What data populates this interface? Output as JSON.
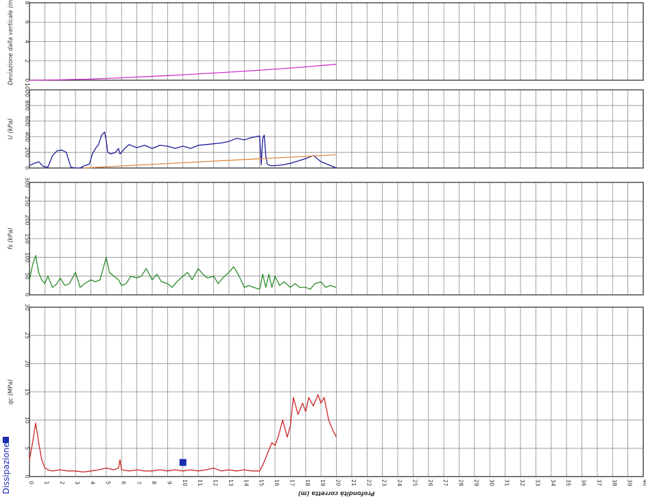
{
  "chart_data": [
    {
      "type": "line",
      "ylabel": "Deviazione dalla verticale (m)",
      "ylim": [
        0,
        8
      ],
      "yticks": [
        "0",
        "2",
        "4",
        "6",
        "8"
      ],
      "series": [
        {
          "color": "#cc33cc",
          "x": [
            0,
            2,
            4,
            6,
            8,
            10,
            12,
            14,
            16,
            18,
            20
          ],
          "y": [
            0,
            0.04,
            0.12,
            0.25,
            0.4,
            0.56,
            0.74,
            0.93,
            1.14,
            1.38,
            1.65
          ]
        }
      ]
    },
    {
      "type": "line",
      "ylabel": "U (kPa)",
      "ylim": [
        0,
        1000
      ],
      "yticks": [
        "0",
        "200",
        "400",
        "600",
        "800",
        "1000"
      ],
      "series": [
        {
          "color": "#1a1a99",
          "x": [
            0,
            0.3,
            0.6,
            0.9,
            1.2,
            1.5,
            1.8,
            2.1,
            2.4,
            2.7,
            3.0,
            3.3,
            3.6,
            3.9,
            4.1,
            4.3,
            4.5,
            4.7,
            4.9,
            5.0,
            5.1,
            5.3,
            5.6,
            5.8,
            5.9,
            6.0,
            6.2,
            6.5,
            7.0,
            7.5,
            8.0,
            8.5,
            9.0,
            9.5,
            10.0,
            10.5,
            11.0,
            11.5,
            12.0,
            12.5,
            13.0,
            13.5,
            14.0,
            14.5,
            15.0,
            15.1,
            15.2,
            15.3,
            15.4,
            15.5,
            15.7,
            16.0,
            16.5,
            17.0,
            17.5,
            18.0,
            18.5,
            19.0,
            19.5,
            20.0
          ],
          "y": [
            30,
            60,
            80,
            20,
            10,
            160,
            220,
            230,
            200,
            10,
            0,
            0,
            30,
            50,
            180,
            250,
            300,
            420,
            460,
            350,
            200,
            180,
            200,
            250,
            180,
            200,
            250,
            300,
            260,
            290,
            250,
            290,
            280,
            250,
            280,
            250,
            290,
            300,
            310,
            320,
            340,
            380,
            360,
            390,
            410,
            40,
            380,
            420,
            150,
            50,
            30,
            30,
            40,
            60,
            90,
            120,
            160,
            80,
            40,
            0
          ]
        },
        {
          "color": "#e08840",
          "x": [
            3.5,
            20
          ],
          "y": [
            0,
            170
          ]
        }
      ]
    },
    {
      "type": "line",
      "ylabel": "fs (kPa)",
      "ylim": [
        0,
        300
      ],
      "yticks": [
        "0",
        "50",
        "100",
        "150",
        "200",
        "250",
        "300"
      ],
      "series": [
        {
          "color": "#2a8a2a",
          "x": [
            0,
            0.2,
            0.4,
            0.6,
            0.8,
            1.0,
            1.2,
            1.5,
            1.8,
            2.0,
            2.3,
            2.6,
            3.0,
            3.3,
            3.6,
            4.0,
            4.3,
            4.6,
            4.8,
            5.0,
            5.2,
            5.5,
            5.8,
            6.0,
            6.3,
            6.6,
            7.0,
            7.3,
            7.6,
            8.0,
            8.3,
            8.6,
            9.0,
            9.3,
            9.6,
            10.0,
            10.3,
            10.6,
            11.0,
            11.3,
            11.6,
            12.0,
            12.3,
            12.6,
            13.0,
            13.3,
            13.6,
            14.0,
            14.3,
            14.6,
            15.0,
            15.2,
            15.4,
            15.6,
            15.8,
            16.0,
            16.3,
            16.6,
            17.0,
            17.3,
            17.6,
            18.0,
            18.3,
            18.6,
            19.0,
            19.3,
            19.6,
            20.0
          ],
          "y": [
            40,
            80,
            105,
            60,
            40,
            30,
            50,
            20,
            30,
            45,
            25,
            30,
            60,
            20,
            30,
            40,
            35,
            40,
            70,
            100,
            60,
            50,
            40,
            25,
            30,
            50,
            45,
            50,
            70,
            40,
            55,
            35,
            30,
            20,
            35,
            50,
            60,
            40,
            70,
            55,
            45,
            50,
            30,
            45,
            60,
            75,
            55,
            20,
            25,
            20,
            15,
            55,
            20,
            55,
            20,
            50,
            25,
            35,
            20,
            30,
            20,
            20,
            15,
            30,
            35,
            20,
            25,
            20
          ]
        }
      ]
    },
    {
      "type": "line",
      "ylabel": "qc (MPa)",
      "xlabel": "Profondità corretta (m)",
      "ylim": [
        0,
        30
      ],
      "yticks": [
        "0",
        "5",
        "10",
        "15",
        "20",
        "25",
        "30"
      ],
      "xlim": [
        0,
        40
      ],
      "xticks": [
        "0",
        "1",
        "2",
        "3",
        "4",
        "5",
        "6",
        "7",
        "8",
        "9",
        "10",
        "11",
        "12",
        "13",
        "14",
        "15",
        "16",
        "17",
        "18",
        "19",
        "20",
        "21",
        "22",
        "23",
        "24",
        "25",
        "26",
        "27",
        "28",
        "29",
        "30",
        "31",
        "32",
        "33",
        "34",
        "35",
        "36",
        "37",
        "38",
        "39",
        "40"
      ],
      "legend": "Dissipazione",
      "marker": {
        "x": 10,
        "y": 2.5
      },
      "series": [
        {
          "color": "#cc2222",
          "x": [
            0,
            0.2,
            0.4,
            0.6,
            0.8,
            1.0,
            1.2,
            1.5,
            2.0,
            2.5,
            3.0,
            3.5,
            4.0,
            4.5,
            5.0,
            5.5,
            5.8,
            5.9,
            6.0,
            6.5,
            7.0,
            7.5,
            8.0,
            8.5,
            9.0,
            9.5,
            10.0,
            10.5,
            11.0,
            11.5,
            12.0,
            12.5,
            13.0,
            13.5,
            14.0,
            14.5,
            15.0,
            15.2,
            15.5,
            15.8,
            16.0,
            16.2,
            16.5,
            16.8,
            17.0,
            17.2,
            17.5,
            17.8,
            18.0,
            18.2,
            18.5,
            18.8,
            19.0,
            19.2,
            19.5,
            19.8,
            20.0
          ],
          "y": [
            3,
            6,
            9.5,
            6,
            3,
            1.5,
            1.2,
            1.0,
            1.2,
            1.0,
            1.0,
            0.8,
            1.0,
            1.2,
            1.5,
            1.2,
            1.5,
            3.0,
            1.2,
            1.0,
            1.2,
            1.0,
            1.0,
            1.2,
            1.0,
            1.2,
            1.0,
            1.2,
            1.0,
            1.2,
            1.5,
            1.0,
            1.2,
            1.0,
            1.2,
            1.0,
            1.0,
            2.0,
            4.0,
            6.0,
            5.5,
            7.0,
            10.0,
            7.0,
            9.0,
            14.0,
            11.0,
            13.0,
            11.5,
            14.0,
            12.5,
            14.5,
            13.0,
            14.0,
            10.0,
            8.0,
            7.0
          ]
        }
      ]
    }
  ]
}
